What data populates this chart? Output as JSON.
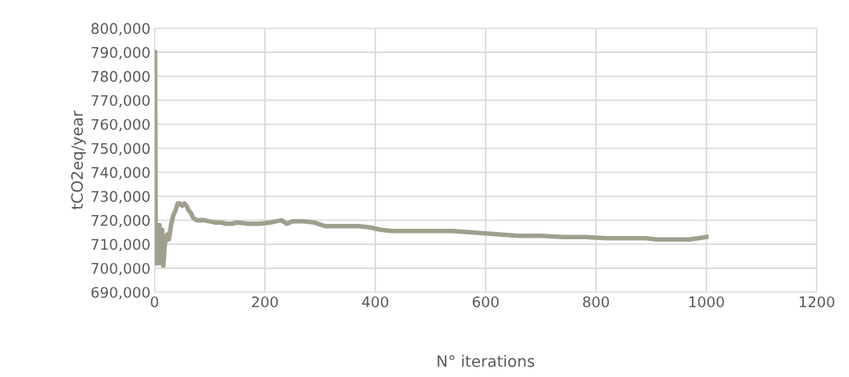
{
  "chart_data": {
    "type": "line",
    "xlabel": "N° iterations",
    "ylabel": "tCO2eq/year",
    "xlim": [
      0,
      1200
    ],
    "xticks": [
      0,
      200,
      400,
      600,
      800,
      1000,
      1200
    ],
    "ylim": [
      690000,
      800000
    ],
    "yticks": [
      {
        "value": 690000,
        "label": "690,000"
      },
      {
        "value": 700000,
        "label": "700,000"
      },
      {
        "value": 710000,
        "label": "710,000"
      },
      {
        "value": 720000,
        "label": "720,000"
      },
      {
        "value": 730000,
        "label": "730,000"
      },
      {
        "value": 740000,
        "label": "740,000"
      },
      {
        "value": 750000,
        "label": "750,000"
      },
      {
        "value": 760000,
        "label": "760,000"
      },
      {
        "value": 770000,
        "label": "770,000"
      },
      {
        "value": 780000,
        "label": "780,000"
      },
      {
        "value": 790000,
        "label": "790,000"
      },
      {
        "value": 800000,
        "label": "800,000"
      }
    ],
    "grid": true,
    "legend": false,
    "marker": "none",
    "line_style": "solid",
    "series": [
      {
        "color": "#a09f8d",
        "x": [
          1,
          2,
          3,
          4,
          5,
          6,
          7,
          8,
          9,
          10,
          12,
          14,
          16,
          18,
          20,
          23,
          26,
          30,
          34,
          38,
          42,
          46,
          50,
          54,
          58,
          62,
          66,
          70,
          76,
          82,
          90,
          100,
          110,
          120,
          130,
          140,
          150,
          170,
          190,
          210,
          230,
          240,
          250,
          270,
          290,
          310,
          330,
          350,
          370,
          390,
          410,
          430,
          450,
          480,
          510,
          540,
          570,
          600,
          630,
          660,
          700,
          740,
          780,
          820,
          860,
          890,
          910,
          940,
          970,
          1000
        ],
        "values": [
          790000,
          716000,
          702000,
          717000,
          718000,
          704000,
          702000,
          717000,
          718000,
          706000,
          702000,
          716000,
          701000,
          708000,
          712000,
          714000,
          712000,
          718000,
          722000,
          724000,
          727000,
          727000,
          726000,
          727000,
          726000,
          724000,
          723000,
          721000,
          720000,
          720000,
          720000,
          719500,
          719000,
          719000,
          718500,
          718500,
          719000,
          718500,
          718500,
          719000,
          720000,
          718500,
          719500,
          719500,
          719000,
          717500,
          717500,
          717500,
          717500,
          717000,
          716000,
          715500,
          715500,
          715500,
          715500,
          715500,
          715000,
          714500,
          714000,
          713500,
          713500,
          713000,
          713000,
          712500,
          712500,
          712500,
          712000,
          712000,
          712000,
          713000
        ]
      }
    ]
  }
}
